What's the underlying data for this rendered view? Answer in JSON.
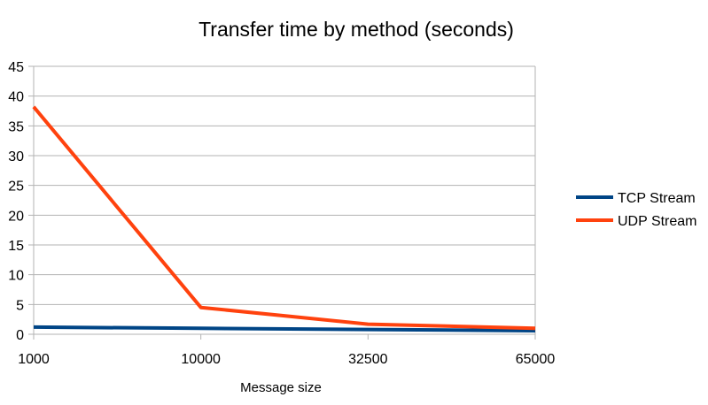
{
  "chart_data": {
    "type": "line",
    "title": "Transfer time by method (seconds)",
    "xlabel": "Message size",
    "ylabel": "",
    "categories": [
      "1000",
      "10000",
      "32500",
      "65000"
    ],
    "ylim": [
      0,
      45
    ],
    "yticks": [
      0,
      5,
      10,
      15,
      20,
      25,
      30,
      35,
      40,
      45
    ],
    "grid": true,
    "legend_position": "right",
    "series": [
      {
        "name": "TCP Stream",
        "color": "#004586",
        "values": [
          1.2,
          1.0,
          0.8,
          0.6
        ]
      },
      {
        "name": "UDP Stream",
        "color": "#ff420e",
        "values": [
          38.2,
          4.5,
          1.7,
          1.0
        ]
      }
    ]
  }
}
